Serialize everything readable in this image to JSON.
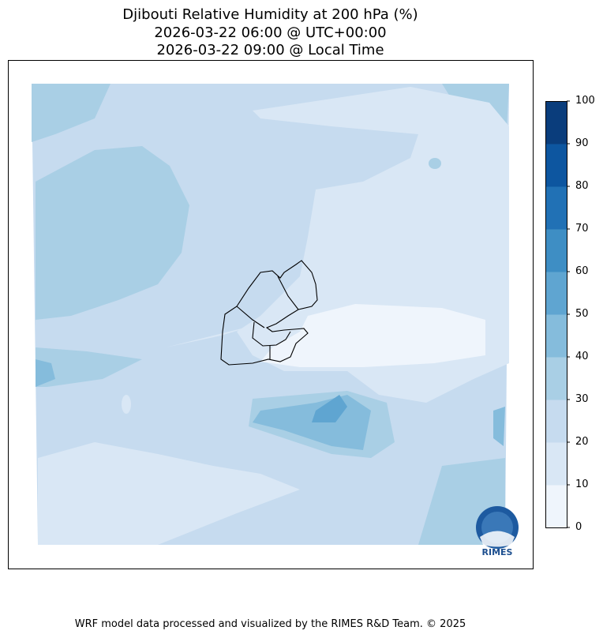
{
  "title": {
    "line1": "Djibouti Relative Humidity at 200 hPa (%)",
    "line2": "2026-03-22 06:00 @ UTC+00:00",
    "line3": "2026-03-22 09:00 @ Local Time"
  },
  "colorbar": {
    "ticks": [
      "0",
      "10",
      "20",
      "30",
      "40",
      "50",
      "60",
      "70",
      "80",
      "90",
      "100"
    ],
    "levels": [
      0,
      10,
      20,
      30,
      40,
      50,
      60,
      70,
      80,
      90,
      100
    ],
    "colors": [
      "#eff5fc",
      "#d9e7f5",
      "#c6dbef",
      "#a9cfe5",
      "#85bcdc",
      "#5fa5d1",
      "#3e8ec4",
      "#2171b5",
      "#0d56a0",
      "#0a3d7c"
    ]
  },
  "logo": {
    "text": "RIMES"
  },
  "credit": "WRF model data processed and visualized by the RIMES R&D Team. © 2025"
}
